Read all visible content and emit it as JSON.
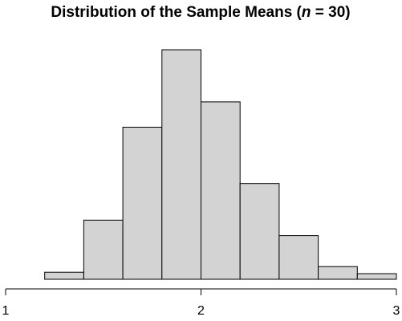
{
  "chart_data": {
    "type": "bar",
    "title": {
      "prefix": "Distribution of the Sample Means (",
      "n_symbol": "n",
      "suffix": " = 30)"
    },
    "xlabel": "",
    "ylabel": "",
    "x_ticks": [
      "1",
      "2",
      "3"
    ],
    "xlim": [
      1,
      3
    ],
    "bins": [
      {
        "x0": 1.2,
        "x1": 1.4,
        "count": 5
      },
      {
        "x0": 1.4,
        "x1": 1.6,
        "count": 42
      },
      {
        "x0": 1.6,
        "x1": 1.8,
        "count": 108
      },
      {
        "x0": 1.8,
        "x1": 2.0,
        "count": 163
      },
      {
        "x0": 2.0,
        "x1": 2.2,
        "count": 126
      },
      {
        "x0": 2.2,
        "x1": 2.4,
        "count": 68
      },
      {
        "x0": 2.4,
        "x1": 2.6,
        "count": 31
      },
      {
        "x0": 2.6,
        "x1": 2.8,
        "count": 9
      },
      {
        "x0": 2.8,
        "x1": 3.0,
        "count": 4
      }
    ],
    "ylim": [
      0,
      163
    ],
    "y_axis_shown": false,
    "grid": false,
    "bar_color": "#d3d3d3",
    "edge_color": "#000000"
  }
}
